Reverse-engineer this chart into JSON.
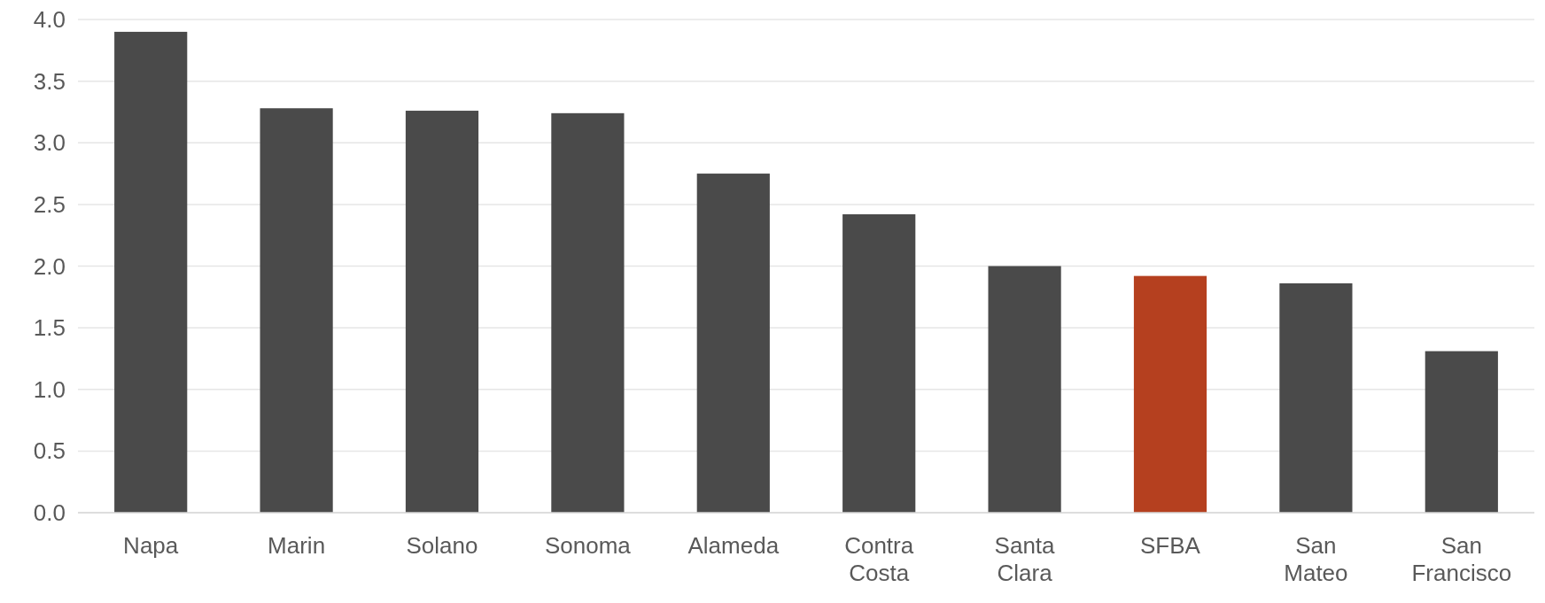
{
  "chart_data": {
    "type": "bar",
    "categories": [
      "Napa",
      "Marin",
      "Solano",
      "Sonoma",
      "Alameda",
      "Contra Costa",
      "Santa Clara",
      "SFBA",
      "San Mateo",
      "San Francisco"
    ],
    "values": [
      3.9,
      3.28,
      3.26,
      3.24,
      2.75,
      2.42,
      2.0,
      1.92,
      1.86,
      1.31
    ],
    "colors": [
      "#4a4a4a",
      "#4a4a4a",
      "#4a4a4a",
      "#4a4a4a",
      "#4a4a4a",
      "#4a4a4a",
      "#4a4a4a",
      "#b5401f",
      "#4a4a4a",
      "#4a4a4a"
    ],
    "ylim": [
      0,
      4
    ],
    "yticks": [
      {
        "value": 0,
        "label": "0.0"
      },
      {
        "value": 0.5,
        "label": "0.5"
      },
      {
        "value": 1,
        "label": "1.0"
      },
      {
        "value": 1.5,
        "label": "1.5"
      },
      {
        "value": 2,
        "label": "2.0"
      },
      {
        "value": 2.5,
        "label": "2.5"
      },
      {
        "value": 3,
        "label": "3.0"
      },
      {
        "value": 3.5,
        "label": "3.5"
      },
      {
        "value": 4,
        "label": "4.0"
      }
    ],
    "grid": "y"
  }
}
